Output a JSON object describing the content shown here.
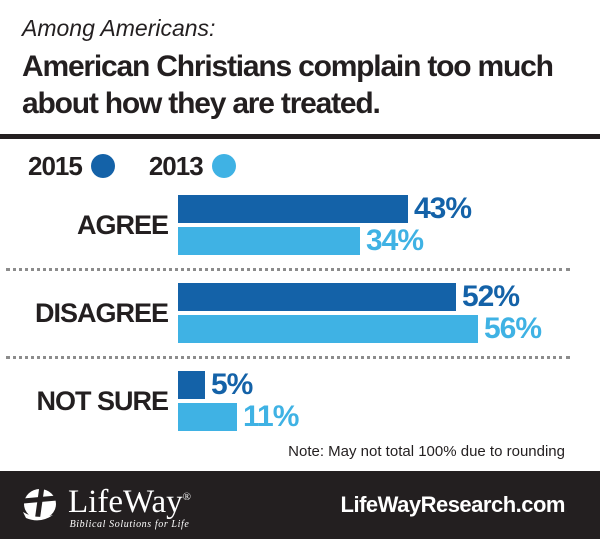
{
  "header": {
    "kicker": "Among Americans:",
    "title_line1": "American Christians complain too much",
    "title_line2": "about how they are treated."
  },
  "legend": [
    {
      "label": "2015",
      "color": "#1462a8"
    },
    {
      "label": "2013",
      "color": "#3fb2e4"
    }
  ],
  "chart_data": {
    "type": "bar",
    "orientation": "horizontal",
    "categories": [
      "AGREE",
      "DISAGREE",
      "NOT SURE"
    ],
    "series": [
      {
        "name": "2015",
        "color": "#1462a8",
        "values": [
          43,
          52,
          5
        ]
      },
      {
        "name": "2013",
        "color": "#3fb2e4",
        "values": [
          34,
          56,
          11
        ]
      }
    ],
    "value_suffix": "%",
    "xlim": [
      0,
      60
    ],
    "grid": false,
    "legend_position": "top-left"
  },
  "note": "Note: May not total 100% due to rounding",
  "footer": {
    "logo_text": "LifeWay",
    "logo_reg": "®",
    "logo_tagline": "Biblical Solutions for Life",
    "website": "LifeWayResearch.com",
    "background": "#231f20"
  },
  "colors": {
    "dark_blue": "#1462a8",
    "light_blue": "#3fb2e4",
    "ink": "#231f20",
    "divider": "#8c8c8c"
  }
}
